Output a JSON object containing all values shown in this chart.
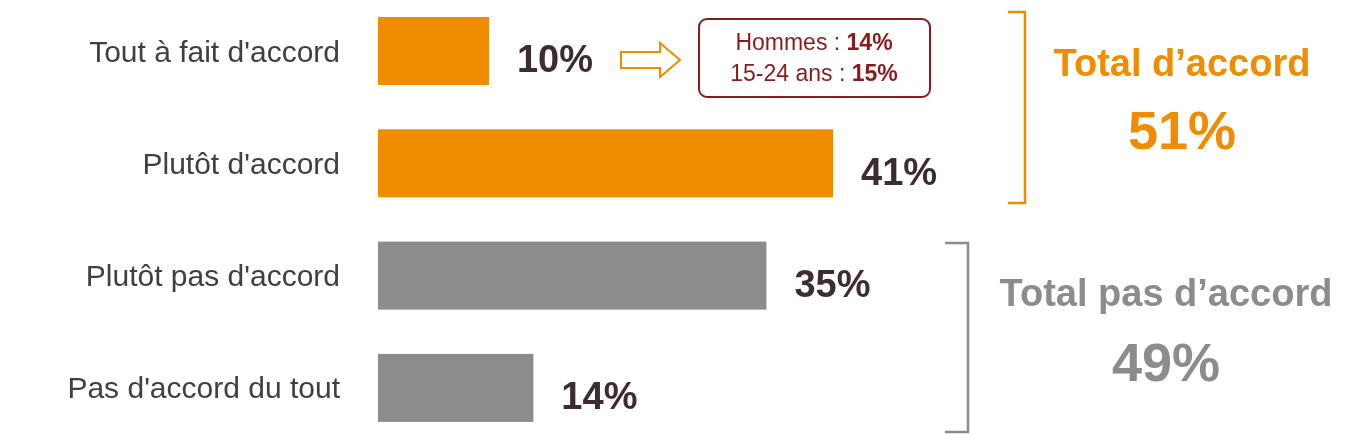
{
  "chart_data": {
    "type": "bar",
    "orientation": "horizontal",
    "categories": [
      "Tout à fait d'accord",
      "Plutôt d'accord",
      "Plutôt pas d'accord",
      "Pas d'accord du tout"
    ],
    "values": [
      10,
      41,
      35,
      14
    ],
    "colors": [
      "#ef8c00",
      "#ef8c00",
      "#8c8c8c",
      "#8c8c8c"
    ],
    "value_labels": [
      "10%",
      "41%",
      "35%",
      "14%"
    ],
    "annotations": [
      "Hommes : 14%",
      "15-24 ans : 15%",
      "Total d’accord",
      "51%",
      "Total pas d’accord",
      "49%"
    ]
  }
}
